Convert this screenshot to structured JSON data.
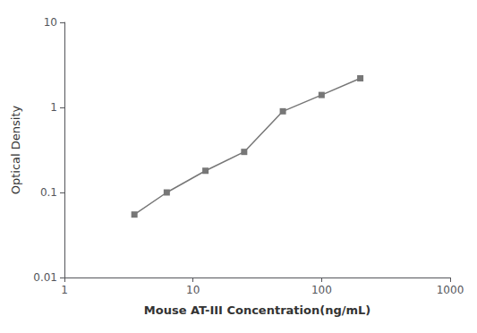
{
  "chart_data": {
    "type": "line",
    "x": [
      3.5,
      6.25,
      12.5,
      25,
      50,
      100,
      200
    ],
    "values": [
      0.055,
      0.1,
      0.18,
      0.3,
      0.9,
      1.4,
      2.2
    ],
    "color": "#777777",
    "marker": "square",
    "xlabel": "Mouse AT-III Concentration(ng/mL)",
    "ylabel": "Optical Density",
    "log": true,
    "xlim": [
      1,
      1000
    ],
    "ylim": [
      0.01,
      10
    ],
    "xticks": [
      1,
      10,
      100,
      1000
    ],
    "yticks": [
      0.01,
      0.1,
      1,
      10
    ],
    "grid": false
  }
}
